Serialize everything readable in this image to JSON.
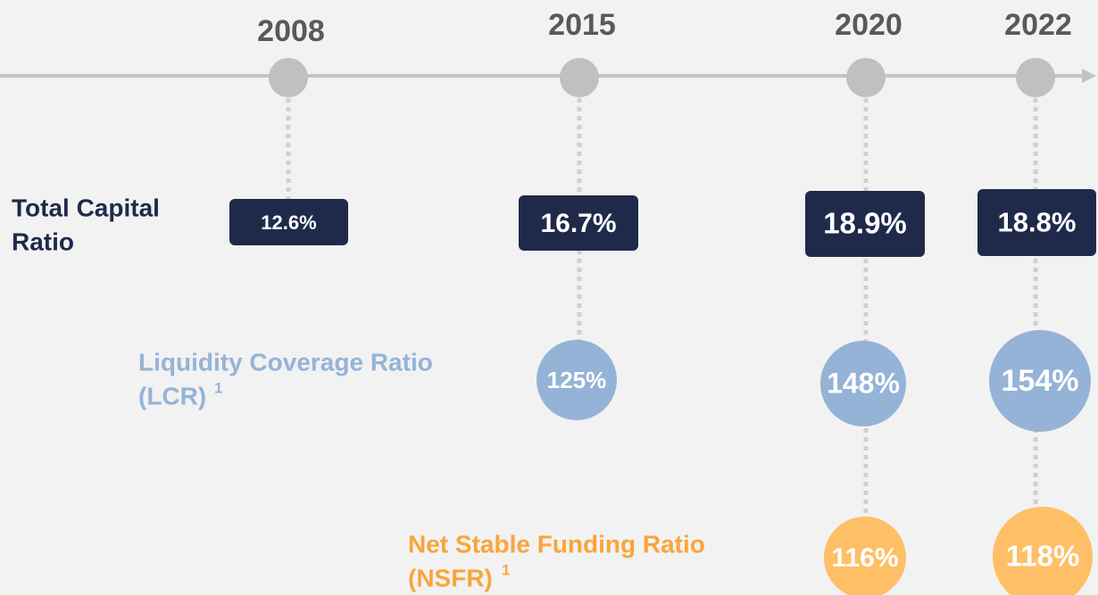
{
  "timeline": {
    "years": [
      "2008",
      "2015",
      "2020",
      "2022"
    ],
    "rows": [
      {
        "label": [
          "Total Capital",
          "Ratio"
        ],
        "values": [
          "12.6%",
          "16.7%",
          "18.9%",
          "18.8%"
        ]
      },
      {
        "label": [
          "Liquidity Coverage Ratio",
          "(LCR)"
        ],
        "footnote": "1",
        "values": [
          null,
          "125%",
          "148%",
          "154%"
        ]
      },
      {
        "label": [
          "Net Stable Funding Ratio",
          "(NSFR)"
        ],
        "footnote": "1",
        "values": [
          null,
          null,
          "116%",
          "118%"
        ]
      }
    ]
  }
}
